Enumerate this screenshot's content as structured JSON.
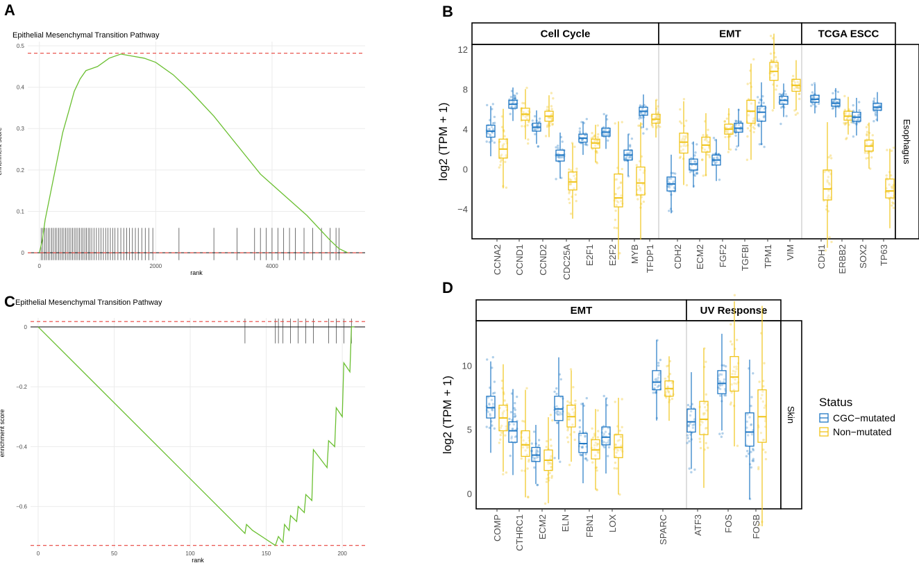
{
  "panels": {
    "A": "A",
    "B": "B",
    "C": "C",
    "D": "D"
  },
  "colors": {
    "cgc": "#1f77c4",
    "non": "#f0c419",
    "curve": "#6abf30",
    "ref": "#e8413a",
    "grid": "#ebebeb"
  },
  "chart_data": [
    {
      "id": "A",
      "type": "line",
      "title": "Epithelial Mesenchymal Transition Pathway",
      "xlabel": "rank",
      "ylabel": "enrichment score",
      "xlim": [
        -200,
        5600
      ],
      "ylim": [
        -0.02,
        0.51
      ],
      "xticks": [
        0,
        2000,
        4000
      ],
      "yticks": [
        0.0,
        0.1,
        0.2,
        0.3,
        0.4,
        0.5
      ],
      "x": [
        0,
        50,
        100,
        200,
        300,
        400,
        500,
        600,
        700,
        800,
        1000,
        1200,
        1400,
        1600,
        1800,
        2000,
        2300,
        2600,
        3000,
        3400,
        3800,
        4200,
        4600,
        5000,
        5150,
        5300
      ],
      "y": [
        0.0,
        0.03,
        0.08,
        0.15,
        0.22,
        0.29,
        0.34,
        0.39,
        0.42,
        0.44,
        0.45,
        0.47,
        0.48,
        0.475,
        0.47,
        0.46,
        0.43,
        0.39,
        0.33,
        0.26,
        0.19,
        0.14,
        0.09,
        0.03,
        0.01,
        0.0
      ],
      "ref_lines": [
        0.482,
        0.0
      ],
      "hits": [
        30,
        60,
        90,
        120,
        150,
        180,
        210,
        240,
        270,
        300,
        330,
        360,
        390,
        420,
        450,
        480,
        510,
        540,
        570,
        600,
        630,
        660,
        690,
        720,
        750,
        780,
        810,
        840,
        870,
        900,
        940,
        980,
        1020,
        1060,
        1100,
        1140,
        1180,
        1220,
        1260,
        1300,
        1350,
        1400,
        1450,
        1500,
        1550,
        1600,
        1650,
        1700,
        1760,
        1820,
        1880,
        1950,
        2400,
        3000,
        3400,
        3700,
        3800,
        3900,
        4000,
        4100,
        4200,
        4300,
        4400,
        4550,
        4700,
        4850,
        5000,
        5100,
        5150
      ]
    },
    {
      "id": "C",
      "type": "line",
      "title": "Epithelial Mesenchymal Transition Pathway",
      "xlabel": "rank",
      "ylabel": "enrichment score",
      "xlim": [
        -5,
        215
      ],
      "ylim": [
        -0.74,
        0.03
      ],
      "xticks": [
        0,
        50,
        100,
        150,
        200
      ],
      "yticks": [
        0.0,
        -0.2,
        -0.4,
        -0.6
      ],
      "x": [
        0,
        136,
        137,
        141,
        156,
        158,
        161,
        162,
        165,
        166,
        170,
        171,
        175,
        176,
        180,
        181,
        190,
        191,
        195,
        196,
        200,
        201,
        205,
        206,
        208
      ],
      "y": [
        0.0,
        -0.69,
        -0.66,
        -0.68,
        -0.73,
        -0.7,
        -0.72,
        -0.66,
        -0.68,
        -0.63,
        -0.65,
        -0.6,
        -0.62,
        -0.56,
        -0.58,
        -0.41,
        -0.47,
        -0.38,
        -0.4,
        -0.27,
        -0.3,
        -0.12,
        -0.15,
        0.0,
        0.0
      ],
      "ref_lines": [
        0.018,
        -0.73
      ],
      "hits": [
        136,
        156,
        158,
        161,
        166,
        171,
        176,
        181,
        191,
        196,
        201,
        206
      ]
    },
    {
      "id": "B",
      "type": "box",
      "ylabel": "log2 (TPM + 1)",
      "ylim": [
        -7,
        12.5
      ],
      "yticks": [
        -4,
        0,
        4,
        8,
        12
      ],
      "strip_right": "Esophagus",
      "facets": [
        {
          "label": "Cell Cycle",
          "genes": [
            "CCNA2",
            "CCND1",
            "CCND2",
            "CDC25A",
            "E2F1",
            "E2F2",
            "MYB",
            "TFDP1"
          ]
        },
        {
          "label": "EMT",
          "genes": [
            "CDH2",
            "ECM2",
            "FGF2",
            "TGFBI",
            "TPM1",
            "VIM"
          ]
        },
        {
          "label": "TCGA ESCC",
          "genes": [
            "CDH1",
            "ERBB2",
            "SOX2",
            "TP63"
          ]
        }
      ],
      "series": [
        {
          "name": "CGC-mutated",
          "median": [
            3.8,
            6.5,
            4.2,
            1.4,
            3.1,
            3.7,
            1.4,
            5.8,
            -1.5,
            0.5,
            0.9,
            4.1,
            5.7,
            6.9,
            7.0,
            6.6,
            5.2,
            6.2
          ],
          "q1": [
            3.2,
            6.1,
            3.8,
            0.8,
            2.7,
            3.3,
            0.9,
            5.4,
            -2.2,
            -0.1,
            0.4,
            3.7,
            4.8,
            6.5,
            6.7,
            6.3,
            4.8,
            5.9
          ],
          "q3": [
            4.4,
            6.9,
            4.6,
            1.9,
            3.5,
            4.1,
            1.9,
            6.2,
            -0.8,
            1.0,
            1.4,
            4.6,
            6.3,
            7.3,
            7.4,
            7.0,
            5.7,
            6.6
          ]
        },
        {
          "name": "Non-mutated",
          "median": [
            2.0,
            5.5,
            5.3,
            -1.3,
            2.6,
            -2.9,
            -1.4,
            5.0,
            2.7,
            2.4,
            4.0,
            5.8,
            9.8,
            8.4,
            -2.0,
            5.3,
            2.3,
            -2.2
          ],
          "q1": [
            1.1,
            4.9,
            4.8,
            -2.1,
            2.1,
            -3.8,
            -2.6,
            4.6,
            1.6,
            1.7,
            3.5,
            4.6,
            8.9,
            7.8,
            -3.1,
            4.9,
            1.8,
            -2.9
          ],
          "q3": [
            3.0,
            6.1,
            5.8,
            -0.3,
            3.0,
            -0.5,
            0.2,
            5.5,
            3.6,
            3.2,
            4.5,
            6.9,
            10.7,
            9.0,
            -0.1,
            5.8,
            2.9,
            -1.0
          ]
        }
      ]
    },
    {
      "id": "D",
      "type": "box",
      "ylabel": "log2 (TPM + 1)",
      "ylim": [
        -1.2,
        13.5
      ],
      "yticks": [
        0,
        5,
        10
      ],
      "strip_right": "Skin",
      "facets": [
        {
          "label": "EMT",
          "genes": [
            "COMP",
            "CTHRC1",
            "ECM2",
            "ELN",
            "FBN1",
            "LOX",
            "SPARC"
          ]
        },
        {
          "label": "UV Response",
          "genes": [
            "ATF3",
            "FOS",
            "FOSB"
          ]
        }
      ],
      "series": [
        {
          "name": "CGC-mutated",
          "median": [
            6.7,
            4.9,
            3.0,
            6.6,
            3.9,
            4.4,
            8.7,
            5.6,
            8.6,
            4.8
          ],
          "q1": [
            5.9,
            4.0,
            2.5,
            5.7,
            3.2,
            3.8,
            8.1,
            4.8,
            7.8,
            3.7
          ],
          "q3": [
            7.6,
            5.6,
            3.6,
            7.6,
            4.7,
            5.2,
            9.6,
            6.6,
            9.6,
            6.3
          ]
        },
        {
          "name": "Non-mutated",
          "median": [
            5.9,
            3.8,
            2.6,
            6.0,
            3.4,
            3.6,
            8.2,
            5.8,
            9.1,
            6.0
          ],
          "q1": [
            4.9,
            2.9,
            1.8,
            5.2,
            2.7,
            2.8,
            7.6,
            4.6,
            8.0,
            4.0
          ],
          "q3": [
            6.9,
            4.9,
            3.4,
            6.9,
            4.2,
            4.6,
            8.8,
            7.2,
            10.7,
            8.1
          ]
        }
      ],
      "legend": {
        "title": "Status",
        "items": [
          "CGC−mutated",
          "Non−mutated"
        ]
      }
    }
  ]
}
